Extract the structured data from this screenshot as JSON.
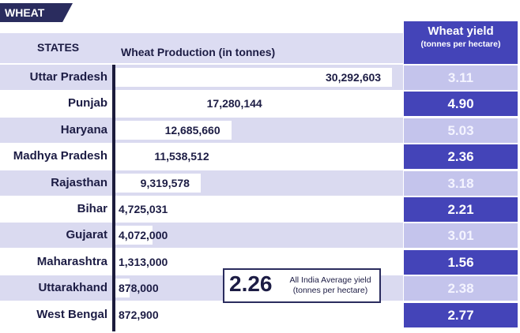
{
  "section_tag": "WHEAT",
  "headers": {
    "states": "STATES",
    "production": "Wheat Production (in tonnes)",
    "yield_line1": "Wheat yield",
    "yield_line2": "(tonnes per hectare)"
  },
  "average": {
    "value": "2.26",
    "label_line1": "All India Average yield",
    "label_line2": "(tonnes per hectare)"
  },
  "colors": {
    "header_band": "#dcdcf2",
    "row_shade": "#dadaf0",
    "axis": "#1c1c3c",
    "yield_dark": "#4444b8",
    "yield_light": "#c4c4ec",
    "tag_bg": "#2a2c5e"
  },
  "chart_data": {
    "type": "bar",
    "orientation": "horizontal",
    "categories": [
      "Uttar Pradesh",
      "Punjab",
      "Haryana",
      "Madhya Pradesh",
      "Rajasthan",
      "Bihar",
      "Gujarat",
      "Maharashtra",
      "Uttarakhand",
      "West Bengal"
    ],
    "series": [
      {
        "name": "Wheat Production (in tonnes)",
        "values": [
          30292603,
          17280144,
          12685660,
          11538512,
          9319578,
          4725031,
          4072000,
          1313000,
          878000,
          872900
        ],
        "labels": [
          "30,292,603",
          "17,280,144",
          "12,685,660",
          "11,538,512",
          "9,319,578",
          "4,725,031",
          "4,072,000",
          "1,313,000",
          "878,000",
          "872,900"
        ]
      },
      {
        "name": "Wheat yield (tonnes per hectare)",
        "values": [
          3.11,
          4.9,
          5.03,
          2.36,
          3.18,
          2.21,
          3.01,
          1.56,
          2.38,
          2.77
        ],
        "labels": [
          "3.11",
          "4.90",
          "5.03",
          "2.36",
          "3.18",
          "2.21",
          "3.01",
          "1.56",
          "2.38",
          "2.77"
        ]
      }
    ],
    "xlim": [
      0,
      30292603
    ],
    "grid": false
  }
}
